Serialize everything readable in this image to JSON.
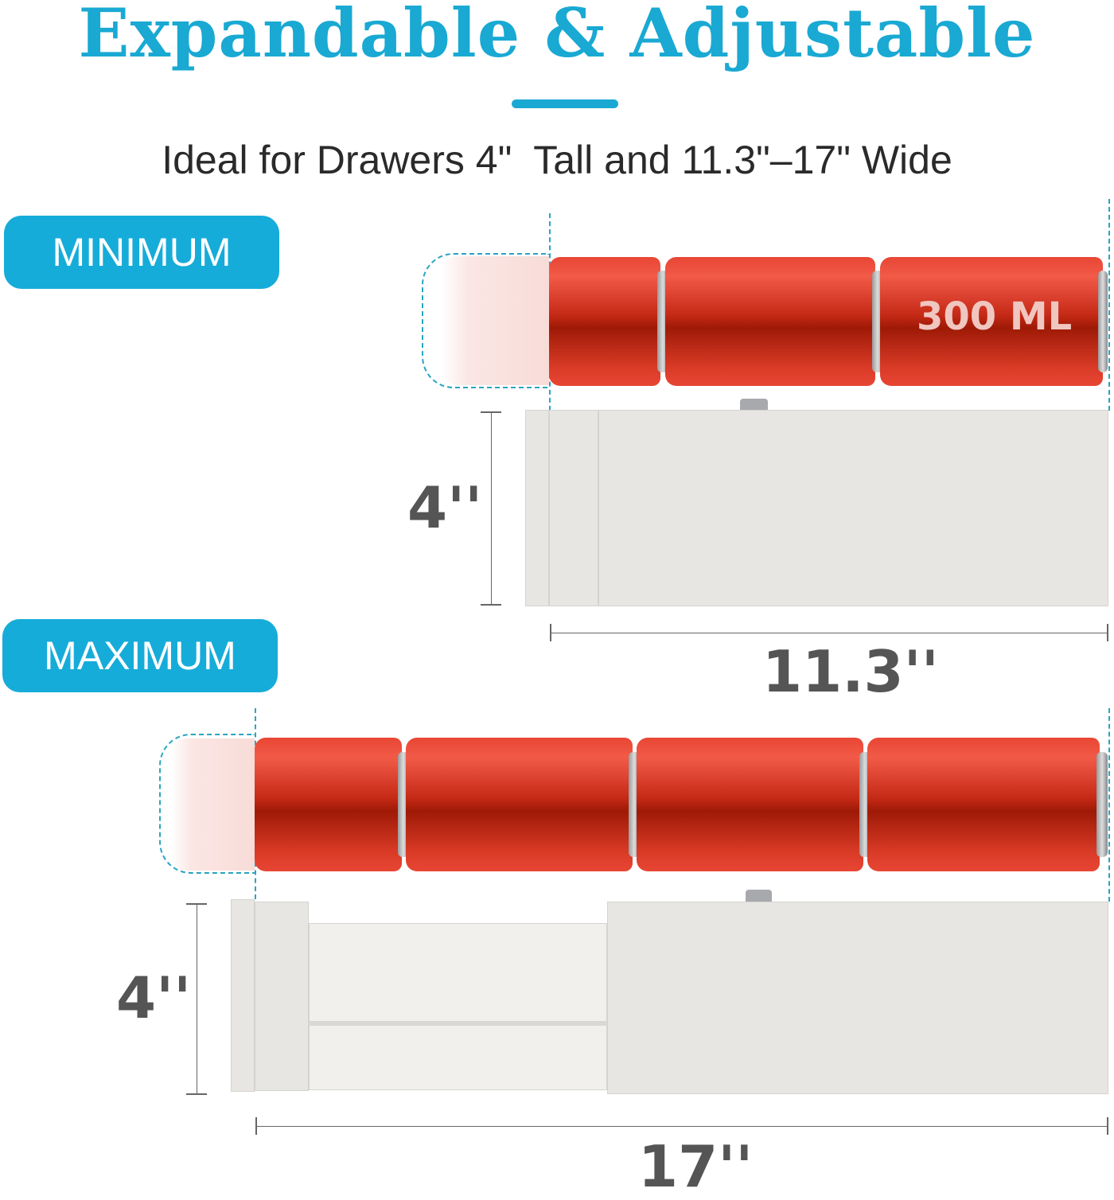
{
  "header": {
    "title": "Expandable & Adjustable",
    "subtitle": "Ideal for Drawers 4\"  Tall and 11.3\"–17\" Wide"
  },
  "minimum": {
    "badge": "MINIMUM",
    "can_label": "300 ML",
    "height": "4''",
    "width": "11.3''",
    "can_count": 3
  },
  "maximum": {
    "badge": "MAXIMUM",
    "height": "4''",
    "width": "17''",
    "can_count": 4
  },
  "colors": {
    "accent": "#19a9d3",
    "can_red": "#c52a16",
    "organizer": "#e7e6e3"
  }
}
